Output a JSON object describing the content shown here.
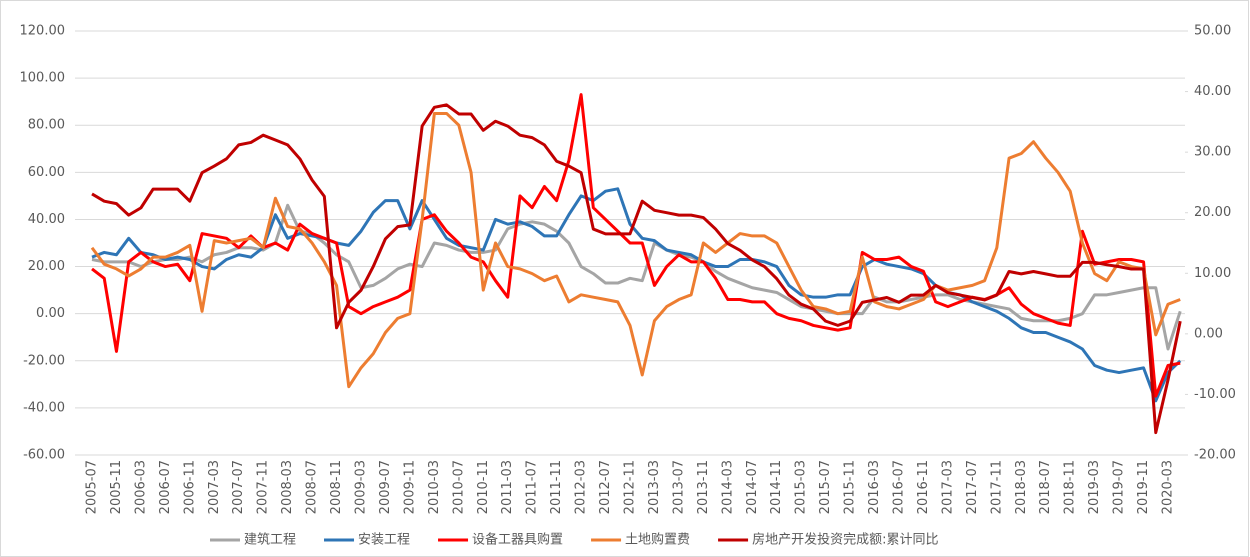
{
  "chart_data": {
    "type": "line",
    "categories": [
      "2005-07",
      null,
      "2005-11",
      null,
      "2006-03",
      null,
      "2006-07",
      null,
      "2006-11",
      null,
      "2007-03",
      null,
      "2007-07",
      null,
      "2007-11",
      null,
      "2008-03",
      null,
      "2008-07",
      null,
      "2008-11",
      null,
      "2009-03",
      null,
      "2009-07",
      null,
      "2009-11",
      null,
      "2010-03",
      null,
      "2010-07",
      null,
      "2010-11",
      null,
      "2011-03",
      null,
      "2011-07",
      null,
      "2011-11",
      null,
      "2012-03",
      null,
      "2012-07",
      null,
      "2012-11",
      null,
      "2013-03",
      null,
      "2013-07",
      null,
      "2013-11",
      null,
      "2014-03",
      null,
      "2014-07",
      null,
      "2014-11",
      null,
      "2015-03",
      null,
      "2015-07",
      null,
      "2015-11",
      null,
      "2016-03",
      null,
      "2016-07",
      null,
      "2016-11",
      null,
      "2017-03",
      null,
      "2017-07",
      null,
      "2017-11",
      null,
      "2018-03",
      null,
      "2018-07",
      null,
      "2018-11",
      null,
      "2019-03",
      null,
      "2019-07",
      null,
      "2019-11",
      null,
      "2020-03",
      null
    ],
    "series": [
      {
        "name": "建筑工程",
        "color": "#a5a5a5",
        "values": [
          23,
          22,
          22,
          22,
          20,
          22,
          23,
          23,
          24,
          22,
          25,
          26,
          28,
          28,
          27,
          30,
          46,
          35,
          34,
          30,
          25,
          22,
          11,
          12,
          15,
          19,
          21,
          20,
          30,
          29,
          27,
          26,
          26,
          27,
          36,
          38,
          39,
          38,
          35,
          30,
          20,
          17,
          13,
          13,
          15,
          14,
          30,
          27,
          25,
          24,
          22,
          18,
          15,
          13,
          11,
          10,
          9,
          6,
          3,
          2,
          1,
          0,
          0,
          0,
          7,
          5,
          5,
          6,
          7,
          8,
          8,
          6,
          5,
          4,
          3,
          2,
          -2,
          -3,
          -3,
          -3,
          -2,
          0,
          8,
          8,
          9,
          10,
          11,
          11,
          -15,
          1
        ]
      },
      {
        "name": "安装工程",
        "color": "#2e75b6",
        "values": [
          24,
          26,
          25,
          32,
          26,
          25,
          23,
          24,
          23,
          20,
          19,
          23,
          25,
          24,
          28,
          42,
          32,
          34,
          33,
          32,
          30,
          29,
          35,
          43,
          48,
          48,
          36,
          48,
          40,
          32,
          29,
          28,
          27,
          40,
          38,
          39,
          37,
          33,
          33,
          42,
          50,
          48,
          52,
          53,
          38,
          32,
          31,
          27,
          26,
          25,
          22,
          20,
          20,
          23,
          23,
          22,
          20,
          12,
          8,
          7,
          7,
          8,
          8,
          20,
          23,
          21,
          20,
          19,
          17,
          12,
          9,
          8,
          5,
          3,
          1,
          -2,
          -6,
          -8,
          -8,
          -10,
          -12,
          -15,
          -22,
          -24,
          -25,
          -24,
          -23,
          -37,
          -25,
          -20
        ]
      },
      {
        "name": "设备工器具购置",
        "color": "#ff0000",
        "values": [
          19,
          15,
          -16,
          22,
          26,
          22,
          20,
          21,
          14,
          34,
          33,
          32,
          28,
          33,
          28,
          30,
          27,
          38,
          34,
          32,
          30,
          3,
          0,
          3,
          5,
          7,
          10,
          40,
          42,
          35,
          30,
          24,
          22,
          14,
          7,
          50,
          45,
          54,
          48,
          65,
          93,
          45,
          40,
          35,
          30,
          30,
          12,
          20,
          25,
          22,
          22,
          15,
          6,
          6,
          5,
          5,
          0,
          -2,
          -3,
          -5,
          -6,
          -7,
          -6,
          26,
          23,
          23,
          24,
          20,
          18,
          5,
          3,
          5,
          7,
          6,
          8,
          11,
          4,
          0,
          -2,
          -4,
          -5,
          35,
          21,
          22,
          23,
          23,
          22,
          -35,
          -22,
          -21
        ]
      },
      {
        "name": "土地购置费",
        "color": "#ed7d31",
        "values": [
          28,
          21,
          19,
          16,
          19,
          24,
          24,
          26,
          29,
          1,
          31,
          30,
          31,
          32,
          28,
          49,
          37,
          36,
          30,
          22,
          12,
          -31,
          -23,
          -17,
          -8,
          -2,
          0,
          40,
          85,
          85,
          80,
          60,
          10,
          30,
          20,
          19,
          17,
          14,
          16,
          5,
          8,
          7,
          6,
          5,
          -5,
          -26,
          -3,
          3,
          6,
          8,
          30,
          26,
          30,
          34,
          33,
          33,
          30,
          20,
          10,
          3,
          2,
          0,
          1,
          24,
          5,
          3,
          2,
          4,
          6,
          12,
          10,
          11,
          12,
          14,
          28,
          66,
          68,
          73,
          66,
          60,
          52,
          30,
          17,
          14,
          22,
          20,
          19,
          -9,
          4,
          6
        ]
      },
      {
        "name": "房地产开发投资完成额:累计同比",
        "color": "#c00000",
        "axis": "y2",
        "values": [
          23.1,
          21.9,
          21.5,
          19.6,
          20.8,
          23.9,
          23.9,
          23.9,
          21.9,
          26.6,
          27.7,
          28.9,
          31.2,
          31.6,
          32.8,
          32.0,
          31.2,
          28.9,
          25.4,
          22.7,
          1.0,
          5.2,
          7.2,
          11.1,
          15.7,
          17.7,
          18.0,
          34.3,
          37.4,
          37.8,
          36.3,
          36.3,
          33.6,
          35.1,
          34.3,
          32.8,
          32.4,
          31.2,
          28.5,
          27.7,
          26.6,
          17.3,
          16.5,
          16.5,
          16.5,
          21.9,
          20.4,
          20.0,
          19.6,
          19.6,
          19.2,
          17.3,
          14.9,
          13.8,
          12.2,
          11.1,
          9.1,
          6.4,
          4.9,
          4.1,
          2.1,
          1.4,
          2.1,
          5.2,
          5.6,
          6.0,
          5.2,
          6.4,
          6.4,
          8.0,
          6.8,
          6.4,
          6.0,
          5.6,
          6.4,
          10.3,
          9.9,
          10.3,
          9.9,
          9.5,
          9.5,
          11.8,
          11.8,
          11.4,
          11.1,
          10.7,
          10.7,
          -16.3,
          -7.6,
          2.1
        ]
      }
    ],
    "ylim": [
      -60,
      120
    ],
    "yticks": [
      {
        "value": -60,
        "label": "-60.00"
      },
      {
        "value": -40,
        "label": "-40.00"
      },
      {
        "value": -20,
        "label": "-20.00"
      },
      {
        "value": 0,
        "label": "0.00"
      },
      {
        "value": 20,
        "label": "20.00"
      },
      {
        "value": 40,
        "label": "40.00"
      },
      {
        "value": 60,
        "label": "60.00"
      },
      {
        "value": 80,
        "label": "80.00"
      },
      {
        "value": 100,
        "label": "100.00"
      },
      {
        "value": 120,
        "label": "120.00"
      }
    ],
    "y2lim": [
      -20,
      50
    ],
    "y2ticks": [
      {
        "value": -20,
        "label": "-20.00"
      },
      {
        "value": -10,
        "label": "-10.00"
      },
      {
        "value": 0,
        "label": "0.00"
      },
      {
        "value": 10,
        "label": "10.00"
      },
      {
        "value": 20,
        "label": "20.00"
      },
      {
        "value": 30,
        "label": "30.00"
      },
      {
        "value": 40,
        "label": "40.00"
      },
      {
        "value": 50,
        "label": "50.00"
      }
    ],
    "grid": true,
    "legend": "bottom"
  }
}
